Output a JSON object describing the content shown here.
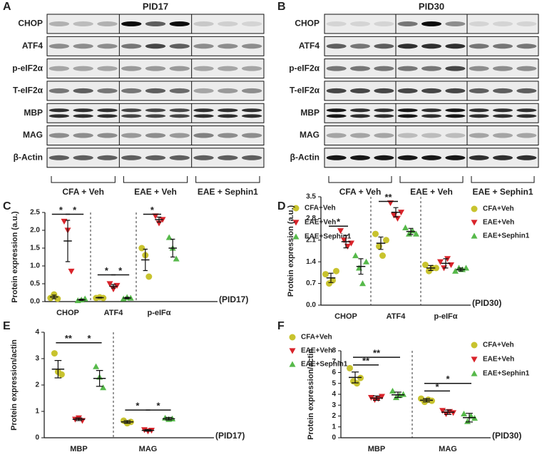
{
  "blots": [
    {
      "panel": "A",
      "title": "PID17",
      "rows": [
        "CHOP",
        "ATF4",
        "p-eIF2α",
        "T-eIF2α",
        "MBP",
        "MAG",
        "β-Actin"
      ],
      "groups": [
        "CFA + Veh",
        "EAE + Veh",
        "EAE + Sephin1"
      ]
    },
    {
      "panel": "B",
      "title": "PID30",
      "rows": [
        "CHOP",
        "ATF4",
        "p-eIF2α",
        "T-eIF2α",
        "MBP",
        "MAG",
        "β-Actin"
      ],
      "groups": [
        "CFA + Veh",
        "EAE + Veh",
        "EAE + Sephin1"
      ]
    }
  ],
  "chart_data": [
    {
      "type": "strip",
      "panel": "C",
      "y_label": "Protein expression (a.u.)",
      "x_note": "(PID17)",
      "categories": [
        "CHOP",
        "ATF4",
        "p-eIFα"
      ],
      "ylim": [
        0,
        2.5
      ],
      "yticks": [
        {
          "value": 0,
          "label": "0.0"
        },
        0.5,
        {
          "value": 1,
          "label": "1.0"
        },
        1.5,
        {
          "value": 2,
          "label": "2.0"
        },
        2.5
      ],
      "series": [
        {
          "name": "CFA+Veh",
          "color": "#c8c32e",
          "marker": "circle",
          "values": [
            0.13,
            0.11,
            1.17
          ],
          "errors": [
            0.05,
            0.01,
            0.3
          ],
          "points": [
            [
              0.1,
              0.2,
              0.08
            ],
            [
              0.1,
              0.12,
              0.1
            ],
            [
              1.5,
              1.3,
              0.7
            ]
          ]
        },
        {
          "name": "EAE+Veh",
          "color": "#d9232a",
          "marker": "triangle-down",
          "values": [
            1.7,
            0.43,
            2.3
          ],
          "errors": [
            0.58,
            0.05,
            0.07
          ],
          "points": [
            [
              2.25,
              2.0,
              0.85
            ],
            [
              0.5,
              0.35,
              0.45
            ],
            [
              2.4,
              2.2,
              2.3
            ]
          ]
        },
        {
          "name": "EAE+Sephin1",
          "color": "#56b94a",
          "marker": "triangle-up",
          "values": [
            0.05,
            0.1,
            1.5
          ],
          "errors": [
            0.02,
            0.02,
            0.25
          ],
          "points": [
            [
              0.03,
              0.05,
              0.08
            ],
            [
              0.08,
              0.12,
              0.1
            ],
            [
              1.8,
              1.5,
              1.2
            ]
          ]
        }
      ],
      "annotations": [
        {
          "label": "*",
          "category": "CHOP",
          "from": "CFA+Veh",
          "to": "EAE+Veh",
          "y": 2.45
        },
        {
          "label": "*",
          "category": "CHOP",
          "from": "EAE+Veh",
          "to": "EAE+Sephin1",
          "y": 2.45
        },
        {
          "label": "*",
          "category": "ATF4",
          "from": "CFA+Veh",
          "to": "EAE+Veh",
          "y": 0.75
        },
        {
          "label": "*",
          "category": "ATF4",
          "from": "EAE+Veh",
          "to": "EAE+Sephin1",
          "y": 0.75
        },
        {
          "label": "*",
          "category": "p-eIFα",
          "from": "CFA+Veh",
          "to": "EAE+Veh",
          "y": 2.45
        }
      ]
    },
    {
      "type": "strip",
      "panel": "D",
      "y_label": "Protein expression (a.u.)",
      "x_note": "(PID30)",
      "categories": [
        "CHOP",
        "ATF4",
        "p-eIFα"
      ],
      "ylim": [
        0,
        3.5
      ],
      "yticks": [
        {
          "value": 0,
          "label": "0.0"
        },
        0.7,
        1.4,
        2.1,
        2.8,
        3.5
      ],
      "series": [
        {
          "name": "CFA+Veh",
          "color": "#c8c32e",
          "marker": "circle",
          "values": [
            0.88,
            2.0,
            1.2
          ],
          "errors": [
            0.15,
            0.2,
            0.08
          ],
          "points": [
            [
              1.0,
              0.7,
              0.8,
              1.1
            ],
            [
              2.3,
              1.9,
              1.6,
              2.1
            ],
            [
              1.3,
              1.1,
              1.2,
              1.2
            ]
          ]
        },
        {
          "name": "EAE+Veh",
          "color": "#d9232a",
          "marker": "triangle-down",
          "values": [
            2.05,
            3.0,
            1.35
          ],
          "errors": [
            0.2,
            0.15,
            0.15
          ],
          "points": [
            [
              2.4,
              2.1,
              1.9,
              2.0
            ],
            [
              3.3,
              2.9,
              2.8,
              3.0
            ],
            [
              1.4,
              1.2,
              1.5,
              1.3
            ]
          ]
        },
        {
          "name": "EAE+Sephin1",
          "color": "#56b94a",
          "marker": "triangle-up",
          "values": [
            1.25,
            2.38,
            1.15
          ],
          "errors": [
            0.25,
            0.1,
            0.05
          ],
          "points": [
            [
              1.6,
              1.2,
              0.7,
              1.4
            ],
            [
              2.5,
              2.3,
              2.4,
              2.3
            ],
            [
              1.1,
              1.2,
              1.15,
              1.2
            ]
          ]
        }
      ],
      "annotations": [
        {
          "label": "*",
          "category": "CHOP",
          "from": "CFA+Veh",
          "to": "EAE+Veh",
          "y": 2.55
        },
        {
          "label": "**",
          "category": "ATF4",
          "from": "CFA+Veh",
          "to": "EAE+Veh",
          "y": 3.35
        }
      ]
    },
    {
      "type": "strip",
      "panel": "E",
      "y_label": "Protein expression/actin",
      "x_note": "(PID17)",
      "categories": [
        "MBP",
        "MAG"
      ],
      "ylim": [
        0,
        4
      ],
      "yticks": [
        0,
        1,
        2,
        3,
        4
      ],
      "series": [
        {
          "name": "CFA+Veh",
          "color": "#c8c32e",
          "marker": "circle",
          "values": [
            2.6,
            0.6
          ],
          "errors": [
            0.33,
            0.05
          ],
          "points": [
            [
              3.2,
              2.5,
              2.4
            ],
            [
              0.65,
              0.55,
              0.6
            ]
          ]
        },
        {
          "name": "EAE+Veh",
          "color": "#d9232a",
          "marker": "triangle-down",
          "values": [
            0.7,
            0.28
          ],
          "errors": [
            0.05,
            0.03
          ],
          "points": [
            [
              0.7,
              0.75,
              0.65
            ],
            [
              0.3,
              0.25,
              0.28
            ]
          ]
        },
        {
          "name": "EAE+Sephin1",
          "color": "#56b94a",
          "marker": "triangle-up",
          "values": [
            2.25,
            0.72
          ],
          "errors": [
            0.3,
            0.05
          ],
          "points": [
            [
              2.7,
              2.3,
              1.9
            ],
            [
              0.75,
              0.7,
              0.72
            ]
          ]
        }
      ],
      "annotations": [
        {
          "label": "**",
          "category": "MBP",
          "from": "CFA+Veh",
          "to": "EAE+Veh",
          "y": 3.6
        },
        {
          "label": "*",
          "category": "MBP",
          "from": "EAE+Veh",
          "to": "EAE+Sephin1",
          "y": 3.6
        },
        {
          "label": "*",
          "category": "MAG",
          "from": "CFA+Veh",
          "to": "EAE+Veh",
          "y": 1.05
        },
        {
          "label": "*",
          "category": "MAG",
          "from": "EAE+Veh",
          "to": "EAE+Sephin1",
          "y": 1.05
        }
      ]
    },
    {
      "type": "strip",
      "panel": "F",
      "y_label": "Protein expression/actin",
      "x_note": "(PID30)",
      "categories": [
        "MBP",
        "MAG"
      ],
      "ylim": [
        0,
        8
      ],
      "yticks": [
        0,
        1,
        2,
        3,
        4,
        5,
        6,
        7,
        8
      ],
      "series": [
        {
          "name": "CFA+Veh",
          "color": "#c8c32e",
          "marker": "circle",
          "values": [
            5.55,
            3.45
          ],
          "errors": [
            0.5,
            0.15
          ],
          "points": [
            [
              6.4,
              5.2,
              5.0,
              5.5
            ],
            [
              3.6,
              3.3,
              3.5,
              3.4
            ]
          ]
        },
        {
          "name": "EAE+Veh",
          "color": "#d9232a",
          "marker": "triangle-down",
          "values": [
            3.65,
            2.35
          ],
          "errors": [
            0.2,
            0.2
          ],
          "points": [
            [
              3.7,
              3.5,
              3.6,
              3.8
            ],
            [
              2.5,
              2.2,
              2.4,
              2.3
            ]
          ]
        },
        {
          "name": "EAE+Sephin1",
          "color": "#56b94a",
          "marker": "triangle-up",
          "values": [
            3.95,
            1.85
          ],
          "errors": [
            0.25,
            0.4
          ],
          "points": [
            [
              4.3,
              3.7,
              3.9,
              4.0
            ],
            [
              2.2,
              1.5,
              2.0,
              1.8
            ]
          ]
        }
      ],
      "annotations": [
        {
          "label": "**",
          "category": "MBP",
          "from": "CFA+Veh",
          "to": "EAE+Veh",
          "y": 6.7
        },
        {
          "label": "**",
          "category": "MBP",
          "from": "CFA+Veh",
          "to": "EAE+Sephin1",
          "y": 7.4
        },
        {
          "label": "*",
          "category": "MAG",
          "from": "CFA+Veh",
          "to": "EAE+Veh",
          "y": 4.3
        },
        {
          "label": "*",
          "category": "MAG",
          "from": "CFA+Veh",
          "to": "EAE+Sephin1",
          "y": 5.0
        }
      ]
    }
  ]
}
